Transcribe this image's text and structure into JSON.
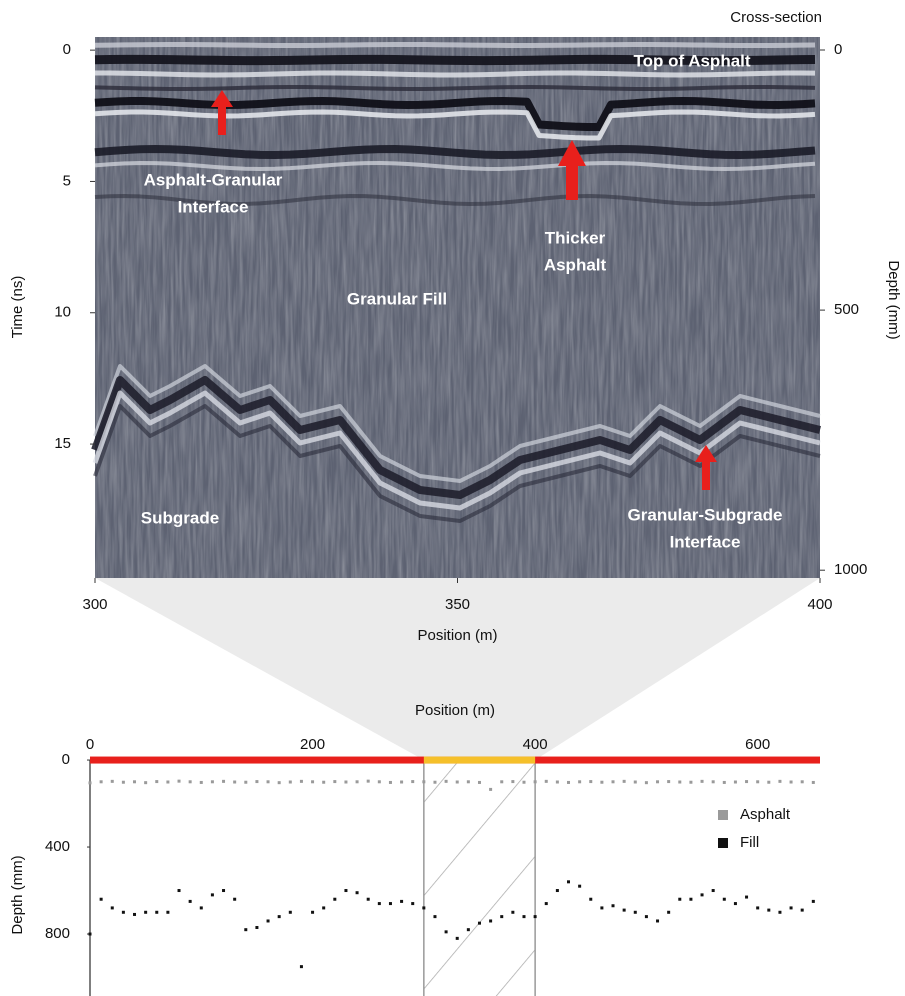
{
  "chart_data": [
    {
      "type": "radargram",
      "title": "Cross-section",
      "xlabel": "Position (m)",
      "ylabel": "Time (ns)",
      "y2label": "Depth (mm)",
      "xlim": [
        300,
        400
      ],
      "xticks": [
        300,
        350,
        400
      ],
      "ylim": [
        -0.5,
        20.1
      ],
      "yticks": [
        0,
        5,
        10,
        15
      ],
      "y2lim": [
        -25,
        1015
      ],
      "y2ticks": [
        0,
        500,
        1000
      ],
      "y_inverted": true,
      "annotations": [
        [
          "Top of Asphalt"
        ],
        [
          "Asphalt-Granular",
          "Interface"
        ],
        [
          "Thicker",
          "Asphalt"
        ],
        [
          "Granular Fill"
        ],
        [
          "Subgrade"
        ],
        [
          "Granular-Subgrade",
          "Interface"
        ]
      ]
    },
    {
      "type": "scatter",
      "xlabel": "Position (m)",
      "ylabel": "Depth (mm)",
      "xlim": [
        0,
        656
      ],
      "xticks": [
        0,
        200,
        400,
        600
      ],
      "ylim": [
        -37,
        1085
      ],
      "yticks": [
        0,
        400,
        800
      ],
      "y_inverted": true,
      "highlight": [
        300,
        400
      ],
      "bar_color": "#e8201c",
      "highlight_color": "#f5c02a",
      "legend": "right",
      "x": [
        0,
        10,
        20,
        30,
        40,
        50,
        60,
        70,
        80,
        90,
        100,
        110,
        120,
        130,
        140,
        150,
        160,
        170,
        180,
        190,
        200,
        210,
        220,
        230,
        240,
        250,
        260,
        270,
        280,
        290,
        300,
        310,
        320,
        330,
        340,
        350,
        360,
        370,
        380,
        390,
        400,
        410,
        420,
        430,
        440,
        450,
        460,
        470,
        480,
        490,
        500,
        510,
        520,
        530,
        540,
        550,
        560,
        570,
        580,
        590,
        600,
        610,
        620,
        630,
        640,
        650
      ],
      "series": [
        {
          "name": "Asphalt",
          "color": "#9a9a9a",
          "values": [
            105,
            100,
            98,
            102,
            100,
            104,
            99,
            101,
            97,
            100,
            103,
            100,
            98,
            101,
            102,
            99,
            100,
            104,
            101,
            98,
            100,
            102,
            99,
            101,
            100,
            97,
            100,
            103,
            101,
            99,
            100,
            102,
            98,
            101,
            100,
            103,
            135,
            100,
            99,
            102,
            100,
            98,
            101,
            103,
            100,
            99,
            102,
            100,
            98,
            101,
            104,
            100,
            99,
            101,
            102,
            98,
            100,
            103,
            101,
            99,
            100,
            102,
            98,
            101,
            100,
            103
          ]
        },
        {
          "name": "Fill",
          "color": "#111111",
          "values": [
            800,
            640,
            680,
            700,
            710,
            700,
            700,
            700,
            600,
            650,
            680,
            620,
            600,
            640,
            780,
            770,
            740,
            720,
            700,
            950,
            700,
            680,
            640,
            600,
            610,
            640,
            660,
            660,
            650,
            660,
            680,
            720,
            790,
            820,
            780,
            750,
            740,
            720,
            700,
            720,
            720,
            660,
            600,
            560,
            580,
            640,
            680,
            670,
            690,
            700,
            720,
            740,
            700,
            640,
            640,
            620,
            600,
            640,
            660,
            630,
            680,
            690,
            700,
            680,
            690,
            650
          ]
        }
      ]
    }
  ]
}
